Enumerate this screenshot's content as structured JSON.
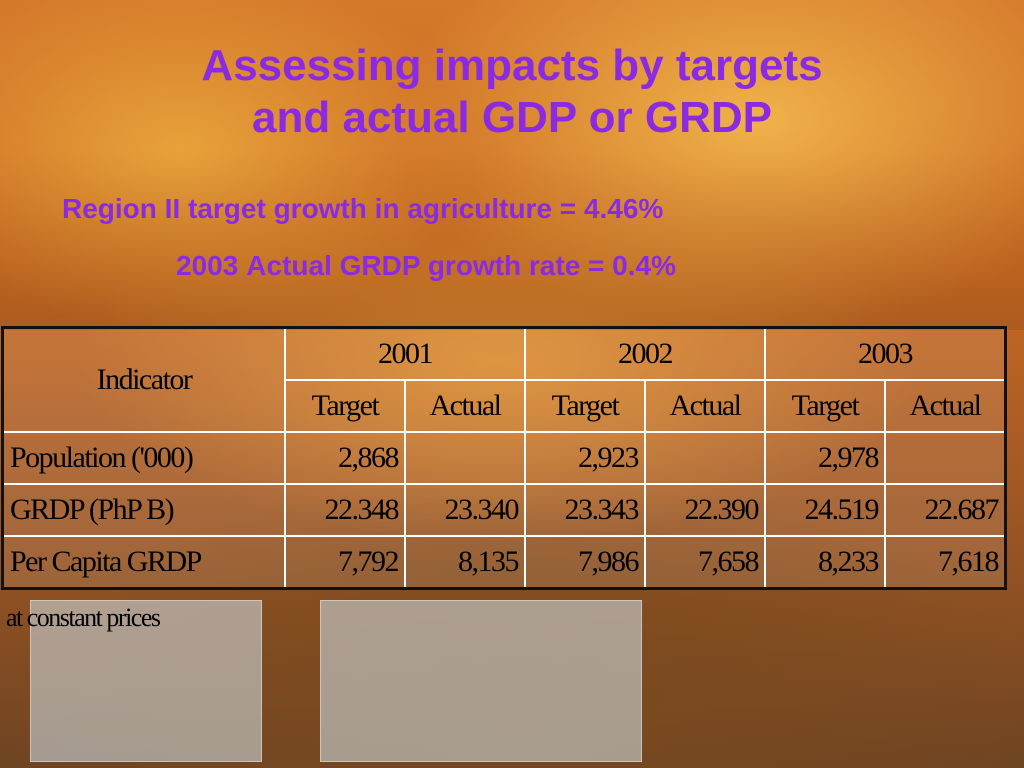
{
  "slide": {
    "title_line1": "Assessing impacts by targets",
    "title_line2": "and actual GDP or GRDP",
    "subtitle1": "Region II target growth in agriculture = 4.46%",
    "subtitle2_year": "2003",
    "subtitle2_text": "Actual GRDP growth rate  = 0.4%",
    "footnote": "at constant prices",
    "accent_color": "#8a2be2"
  },
  "table": {
    "indicator_header": "Indicator",
    "years": [
      "2001",
      "2002",
      "2003"
    ],
    "subheaders": [
      "Target",
      "Actual",
      "Target",
      "Actual",
      "Target",
      "Actual"
    ],
    "rows": [
      {
        "label": "Population ('000)",
        "values": [
          "2,868",
          "",
          "2,923",
          "",
          "2,978",
          ""
        ]
      },
      {
        "label": "GRDP (PhP B)",
        "values": [
          "22.348",
          "23.340",
          "23.343",
          "22.390",
          "24.519",
          "22.687"
        ]
      },
      {
        "label": "Per Capita GRDP",
        "values": [
          "7,792",
          "8,135",
          "7,986",
          "7,658",
          "8,233",
          "7,618"
        ]
      }
    ]
  }
}
